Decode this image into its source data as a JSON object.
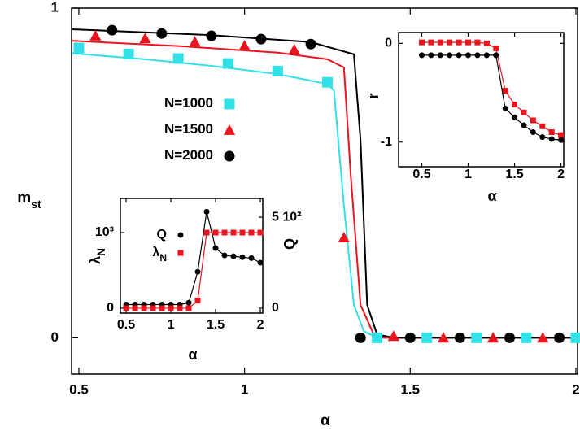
{
  "chart_data": [
    {
      "type": "scatter",
      "xlabel": "α",
      "ylabel": "m",
      "ylabel_sub": "st",
      "xlim": [
        0.478,
        2.005
      ],
      "ylim": [
        -0.11,
        1.0
      ],
      "xticks": [
        0.5,
        1,
        1.5,
        2
      ],
      "yticks": [
        0,
        1
      ],
      "series": [
        {
          "name": "N=1000",
          "color": "#33e0e8",
          "marker": "square",
          "x": [
            0.5,
            0.65,
            0.8,
            0.95,
            1.1,
            1.25,
            1.4,
            1.55,
            1.7,
            1.85,
            2.0
          ],
          "values": [
            0.879,
            0.861,
            0.847,
            0.832,
            0.809,
            0.775,
            0,
            0,
            0,
            0,
            0
          ]
        },
        {
          "name": "N=1500",
          "color": "#e8141e",
          "marker": "triangle",
          "x": [
            0.55,
            0.7,
            0.85,
            1.0,
            1.15,
            1.3,
            1.45,
            1.6,
            1.75,
            1.9
          ],
          "values": [
            0.916,
            0.908,
            0.898,
            0.886,
            0.874,
            0.304,
            0.005,
            0,
            0,
            0
          ]
        },
        {
          "name": "N=2000",
          "color": "#000000",
          "marker": "circle",
          "x": [
            0.6,
            0.75,
            0.9,
            1.05,
            1.2,
            1.35,
            1.5,
            1.65,
            1.8,
            1.95
          ],
          "values": [
            0.933,
            0.923,
            0.916,
            0.906,
            0.891,
            0,
            0,
            0,
            0,
            0
          ]
        }
      ],
      "fits": [
        {
          "color": "#33e0e8",
          "x": [
            0.478,
            0.7,
            0.9,
            1.1,
            1.25,
            1.27,
            1.3,
            1.33,
            1.36,
            1.4,
            2.005
          ],
          "values": [
            0.863,
            0.845,
            0.825,
            0.8,
            0.77,
            0.75,
            0.4,
            0.1,
            0.02,
            0,
            0
          ]
        },
        {
          "color": "#e8141e",
          "x": [
            0.478,
            0.8,
            1.1,
            1.25,
            1.3,
            1.32,
            1.35,
            1.39,
            1.42,
            2.005
          ],
          "values": [
            0.901,
            0.885,
            0.865,
            0.845,
            0.82,
            0.5,
            0.1,
            0.01,
            0,
            0
          ]
        },
        {
          "color": "#000000",
          "x": [
            0.478,
            0.9,
            1.2,
            1.33,
            1.35,
            1.37,
            1.4,
            1.45,
            2.005
          ],
          "values": [
            0.936,
            0.918,
            0.897,
            0.86,
            0.6,
            0.1,
            0.01,
            0,
            0
          ]
        }
      ]
    },
    {
      "type": "scatter",
      "xlabel": "α",
      "ylabel": "r",
      "xlim": [
        0.25,
        2.03
      ],
      "ylim": [
        -1.25,
        0.11
      ],
      "xticks": [
        0.5,
        1,
        1.5,
        2
      ],
      "yticks": [
        0,
        -1
      ],
      "series": [
        {
          "color": "#e8141e",
          "marker": "square",
          "line": true,
          "x": [
            0.5,
            0.6,
            0.7,
            0.8,
            0.9,
            1.0,
            1.1,
            1.2,
            1.3,
            1.4,
            1.5,
            1.6,
            1.7,
            1.8,
            1.9,
            2.0
          ],
          "values": [
            0.01,
            0.01,
            0.01,
            0.01,
            0.01,
            0.01,
            0.01,
            0.0,
            -0.05,
            -0.48,
            -0.62,
            -0.7,
            -0.78,
            -0.84,
            -0.9,
            -0.93
          ]
        },
        {
          "color": "#000000",
          "marker": "circle",
          "line": true,
          "x": [
            0.5,
            0.6,
            0.7,
            0.8,
            0.9,
            1.0,
            1.1,
            1.2,
            1.3,
            1.4,
            1.5,
            1.6,
            1.7,
            1.8,
            1.9,
            2.0
          ],
          "values": [
            -0.12,
            -0.12,
            -0.12,
            -0.12,
            -0.12,
            -0.12,
            -0.12,
            -0.12,
            -0.12,
            -0.66,
            -0.75,
            -0.83,
            -0.9,
            -0.95,
            -0.97,
            -0.98
          ]
        }
      ]
    },
    {
      "type": "scatter",
      "xlabel": "α",
      "ylabel": "λ",
      "ylabel_sub": "N",
      "y2label": "Q",
      "xlim": [
        0.436,
        2.027
      ],
      "ylim": [
        -65,
        1452
      ],
      "y2lim": [
        -27,
        603
      ],
      "xticks": [
        0.5,
        1,
        1.5,
        2
      ],
      "yticks": [
        0,
        {
          "value": 1000,
          "label": "10³"
        }
      ],
      "y2ticks": [
        0,
        {
          "value": 500,
          "label": "5 10²"
        }
      ],
      "series": [
        {
          "name": "Q",
          "color": "#000000",
          "marker": "circle",
          "line": true,
          "axis": "y2",
          "x": [
            0.5,
            0.6,
            0.7,
            0.8,
            0.9,
            1.0,
            1.1,
            1.2,
            1.3,
            1.4,
            1.5,
            1.6,
            1.7,
            1.8,
            1.9,
            2.0
          ],
          "values": [
            20,
            20,
            20,
            20,
            20,
            20,
            20,
            30,
            200,
            530,
            330,
            290,
            285,
            280,
            275,
            250
          ]
        },
        {
          "name": "λ",
          "name_sub": "N",
          "color": "#e8141e",
          "marker": "square",
          "line": true,
          "x": [
            0.5,
            0.6,
            0.7,
            0.8,
            0.9,
            1.0,
            1.1,
            1.2,
            1.3,
            1.4,
            1.5,
            1.6,
            1.7,
            1.8,
            1.9,
            2.0
          ],
          "values": [
            0,
            0,
            0,
            0,
            0,
            0,
            0,
            0,
            100,
            1000,
            1000,
            1000,
            1000,
            1000,
            1000,
            1000
          ]
        }
      ]
    }
  ]
}
